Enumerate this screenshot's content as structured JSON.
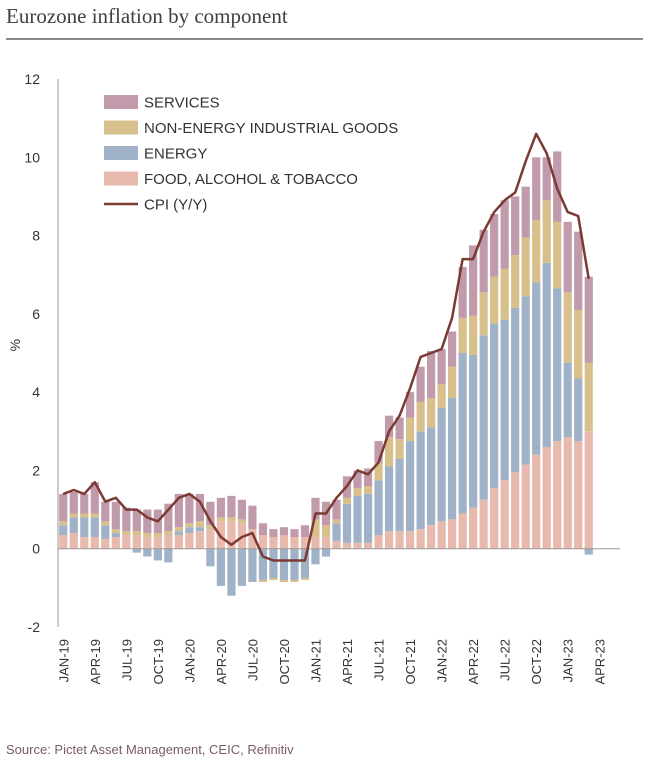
{
  "title": "Eurozone inflation by component",
  "source": "Source: Pictet Asset Management, CEIC, Refinitiv",
  "colors": {
    "services": "#c19aab",
    "goods": "#d7c08b",
    "energy": "#9fb2c8",
    "food": "#e8b9ad",
    "cpi": "#7b3a34",
    "axis": "#999999",
    "text": "#333333"
  },
  "chart_data": {
    "type": "bar",
    "stacked": true,
    "title": "Eurozone inflation by component",
    "ylabel": "%",
    "xlabel": "",
    "ylim": [
      -2,
      12
    ],
    "yticks": [
      -2,
      0,
      2,
      4,
      6,
      8,
      10,
      12
    ],
    "xtick_labels": [
      "JAN-19",
      "APR-19",
      "JUL-19",
      "OCT-19",
      "JAN-20",
      "APR-20",
      "JUL-20",
      "OCT-20",
      "JAN-21",
      "APR-21",
      "JUL-21",
      "OCT-21",
      "JAN-22",
      "APR-22",
      "JUL-22",
      "OCT-22",
      "JAN-23",
      "APR-23"
    ],
    "legend_position": "top-left",
    "categories": [
      "Jan-19",
      "Feb-19",
      "Mar-19",
      "Apr-19",
      "May-19",
      "Jun-19",
      "Jul-19",
      "Aug-19",
      "Sep-19",
      "Oct-19",
      "Nov-19",
      "Dec-19",
      "Jan-20",
      "Feb-20",
      "Mar-20",
      "Apr-20",
      "May-20",
      "Jun-20",
      "Jul-20",
      "Aug-20",
      "Sep-20",
      "Oct-20",
      "Nov-20",
      "Dec-20",
      "Jan-21",
      "Feb-21",
      "Mar-21",
      "Apr-21",
      "May-21",
      "Jun-21",
      "Jul-21",
      "Aug-21",
      "Sep-21",
      "Oct-21",
      "Nov-21",
      "Dec-21",
      "Jan-22",
      "Feb-22",
      "Mar-22",
      "Apr-22",
      "May-22",
      "Jun-22",
      "Jul-22",
      "Aug-22",
      "Sep-22",
      "Oct-22",
      "Nov-22",
      "Dec-22",
      "Jan-23",
      "Feb-23",
      "Mar-23"
    ],
    "series": [
      {
        "name": "FOOD, ALCOHOL & TOBACCO",
        "key": "food",
        "values": [
          0.35,
          0.4,
          0.3,
          0.3,
          0.25,
          0.3,
          0.35,
          0.35,
          0.3,
          0.3,
          0.35,
          0.35,
          0.4,
          0.45,
          0.5,
          0.7,
          0.7,
          0.65,
          0.5,
          0.35,
          0.3,
          0.35,
          0.3,
          0.3,
          0.3,
          0.3,
          0.2,
          0.15,
          0.15,
          0.15,
          0.35,
          0.45,
          0.45,
          0.45,
          0.5,
          0.6,
          0.7,
          0.75,
          0.9,
          1.05,
          1.25,
          1.55,
          1.75,
          1.95,
          2.15,
          2.4,
          2.6,
          2.75,
          2.85,
          2.75,
          3.0
        ]
      },
      {
        "name": "ENERGY",
        "key": "energy",
        "values": [
          0.25,
          0.4,
          0.5,
          0.5,
          0.35,
          0.1,
          0.0,
          -0.1,
          -0.2,
          -0.3,
          -0.35,
          0.1,
          0.15,
          0.1,
          -0.45,
          -0.95,
          -1.2,
          -0.95,
          -0.85,
          -0.8,
          -0.75,
          -0.8,
          -0.8,
          -0.75,
          -0.4,
          -0.2,
          0.45,
          1.0,
          1.2,
          1.25,
          1.4,
          1.65,
          1.85,
          2.3,
          2.5,
          2.5,
          2.9,
          3.1,
          4.1,
          3.9,
          4.2,
          4.2,
          4.1,
          4.2,
          4.3,
          4.4,
          4.7,
          3.9,
          1.9,
          1.6,
          -0.15
        ]
      },
      {
        "name": "NON-ENERGY INDUSTRIAL GOODS",
        "key": "goods",
        "values": [
          0.1,
          0.1,
          0.1,
          0.1,
          0.1,
          0.1,
          0.1,
          0.1,
          0.1,
          0.1,
          0.1,
          0.1,
          0.1,
          0.15,
          0.1,
          0.1,
          0.1,
          0.1,
          0.0,
          -0.05,
          -0.05,
          -0.05,
          -0.05,
          -0.05,
          0.45,
          0.3,
          0.1,
          0.15,
          0.2,
          0.2,
          0.45,
          0.75,
          0.5,
          0.6,
          0.75,
          0.75,
          0.6,
          0.8,
          0.9,
          1.0,
          1.1,
          1.2,
          1.3,
          1.35,
          1.5,
          1.6,
          1.6,
          1.7,
          1.8,
          1.75,
          1.75
        ]
      },
      {
        "name": "SERVICES",
        "key": "services",
        "values": [
          0.7,
          0.55,
          0.5,
          0.8,
          0.5,
          0.7,
          0.6,
          0.55,
          0.6,
          0.6,
          0.7,
          0.85,
          0.75,
          0.7,
          0.6,
          0.5,
          0.55,
          0.5,
          0.6,
          0.3,
          0.2,
          0.2,
          0.2,
          0.3,
          0.55,
          0.6,
          0.5,
          0.55,
          0.45,
          0.45,
          0.55,
          0.55,
          0.55,
          0.65,
          0.9,
          1.2,
          0.9,
          0.9,
          1.3,
          1.8,
          1.6,
          1.6,
          1.75,
          1.5,
          1.3,
          1.6,
          1.1,
          1.8,
          1.8,
          2.0,
          2.2
        ]
      }
    ],
    "cpi": {
      "name": "CPI (Y/Y)",
      "key": "cpi",
      "values": [
        1.4,
        1.5,
        1.4,
        1.7,
        1.2,
        1.3,
        1.0,
        1.0,
        0.8,
        0.7,
        1.0,
        1.3,
        1.4,
        1.2,
        0.7,
        0.3,
        0.1,
        0.3,
        0.4,
        -0.2,
        -0.3,
        -0.3,
        -0.3,
        -0.3,
        0.9,
        0.9,
        1.3,
        1.6,
        2.0,
        1.9,
        2.2,
        3.0,
        3.4,
        4.1,
        4.9,
        5.0,
        5.1,
        5.9,
        7.4,
        7.4,
        8.1,
        8.6,
        8.9,
        9.1,
        9.9,
        10.6,
        10.1,
        9.2,
        8.6,
        8.5,
        6.9
      ]
    },
    "legend": [
      "SERVICES",
      "NON-ENERGY INDUSTRIAL GOODS",
      "ENERGY",
      "FOOD, ALCOHOL & TOBACCO",
      "CPI (Y/Y)"
    ]
  }
}
